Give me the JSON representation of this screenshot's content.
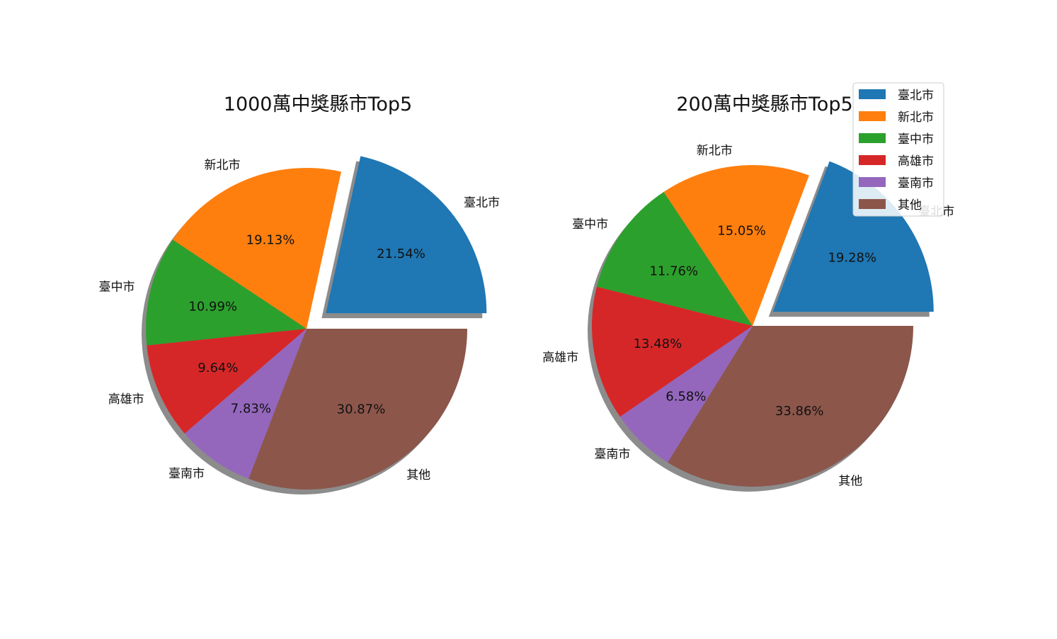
{
  "legend": {
    "entries": [
      "臺北市",
      "新北市",
      "臺中市",
      "高雄市",
      "臺南市",
      "其他"
    ]
  },
  "chart_data": [
    {
      "type": "pie",
      "title": "1000萬中獎縣市Top5",
      "labels": [
        "臺北市",
        "新北市",
        "臺中市",
        "高雄市",
        "臺南市",
        "其他"
      ],
      "values": [
        21.54,
        19.13,
        10.99,
        9.64,
        7.83,
        30.87
      ],
      "value_labels": [
        "21.54%",
        "19.13%",
        "10.99%",
        "9.64%",
        "7.83%",
        "30.87%"
      ],
      "exploded": [
        "臺北市"
      ],
      "shadow": true,
      "start_angle": 0,
      "direction": "counterclockwise"
    },
    {
      "type": "pie",
      "title": "200萬中獎縣市Top5",
      "labels": [
        "臺北市",
        "新北市",
        "臺中市",
        "高雄市",
        "臺南市",
        "其他"
      ],
      "values": [
        19.28,
        15.05,
        11.76,
        13.48,
        6.58,
        33.86
      ],
      "value_labels": [
        "19.28%",
        "15.05%",
        "11.76%",
        "13.48%",
        "6.58%",
        "33.86%"
      ],
      "exploded": [
        "臺北市"
      ],
      "shadow": true,
      "start_angle": 0,
      "direction": "counterclockwise",
      "legend_position": "upper-right"
    }
  ],
  "colors": [
    "#1f77b4",
    "#ff7f0e",
    "#2ca02c",
    "#d62728",
    "#9467bd",
    "#8c564b"
  ]
}
